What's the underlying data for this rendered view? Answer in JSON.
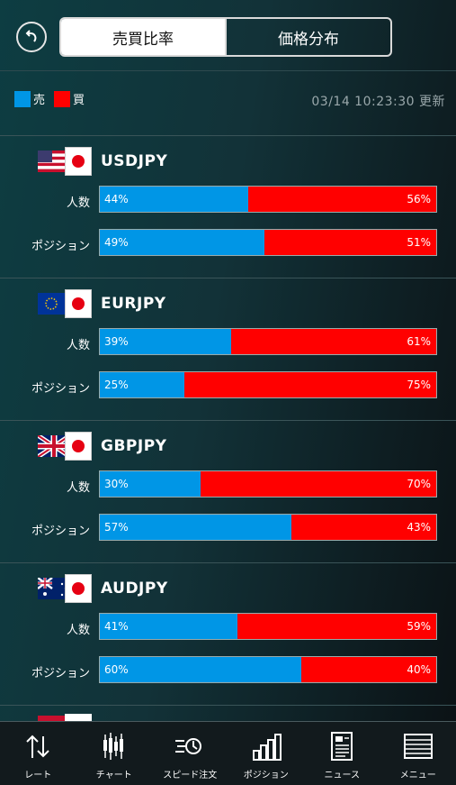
{
  "header": {
    "tabs": [
      {
        "label": "売買比率",
        "active": true
      },
      {
        "label": "価格分布",
        "active": false
      }
    ],
    "back_icon": "undo-arrow-icon"
  },
  "legend": {
    "sell_label": "売",
    "buy_label": "買",
    "sell_color": "#0096e6",
    "buy_color": "#ff0000",
    "updated": "03/14 10:23:30 更新"
  },
  "row_labels": {
    "people": "人数",
    "position": "ポジション"
  },
  "pairs": [
    {
      "name": "USDJPY",
      "flag": "us-flag-icon",
      "people": {
        "sell": 44,
        "buy": 56,
        "sell_text": "44%",
        "buy_text": "56%"
      },
      "position": {
        "sell": 49,
        "buy": 51,
        "sell_text": "49%",
        "buy_text": "51%"
      }
    },
    {
      "name": "EURJPY",
      "flag": "eu-flag-icon",
      "people": {
        "sell": 39,
        "buy": 61,
        "sell_text": "39%",
        "buy_text": "61%"
      },
      "position": {
        "sell": 25,
        "buy": 75,
        "sell_text": "25%",
        "buy_text": "75%"
      }
    },
    {
      "name": "GBPJPY",
      "flag": "uk-flag-icon",
      "people": {
        "sell": 30,
        "buy": 70,
        "sell_text": "30%",
        "buy_text": "70%"
      },
      "position": {
        "sell": 57,
        "buy": 43,
        "sell_text": "57%",
        "buy_text": "43%"
      }
    },
    {
      "name": "AUDJPY",
      "flag": "au-flag-icon",
      "people": {
        "sell": 41,
        "buy": 59,
        "sell_text": "41%",
        "buy_text": "59%"
      },
      "position": {
        "sell": 60,
        "buy": 40,
        "sell_text": "60%",
        "buy_text": "40%"
      }
    }
  ],
  "tabbar": [
    {
      "label": "レート",
      "icon": "rate-arrows-icon"
    },
    {
      "label": "チャート",
      "icon": "candlestick-chart-icon"
    },
    {
      "label": "スピード注文",
      "icon": "speed-order-icon"
    },
    {
      "label": "ポジション",
      "icon": "bar-chart-icon"
    },
    {
      "label": "ニュース",
      "icon": "news-icon"
    },
    {
      "label": "メニュー",
      "icon": "menu-icon"
    }
  ]
}
